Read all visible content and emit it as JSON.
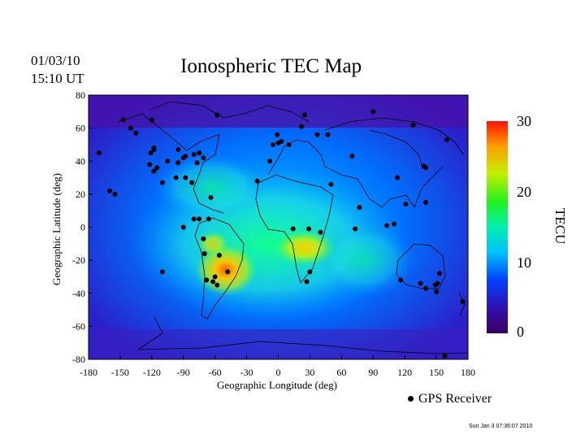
{
  "header": {
    "date": "01/03/10",
    "time": "15:10 UT",
    "title": "Ionospheric TEC Map"
  },
  "map": {
    "xlabel": "Geographic Longitude (deg)",
    "ylabel": "Geographic Latitude (deg)",
    "x_ticks": [
      "-180",
      "-150",
      "-120",
      "-90",
      "-60",
      "-30",
      "0",
      "30",
      "60",
      "90",
      "120",
      "150",
      "180"
    ],
    "y_ticks": [
      "80",
      "60",
      "40",
      "20",
      "0",
      "-20",
      "-40",
      "-60",
      "-80"
    ],
    "xlim": [
      -180,
      180
    ],
    "ylim": [
      -80,
      80
    ]
  },
  "colorbar": {
    "title": "TECU",
    "ticks": [
      "30",
      "20",
      "10",
      "0"
    ],
    "range": [
      0,
      30
    ],
    "colors": [
      "#3a0060",
      "#1a0bd0",
      "#0060ff",
      "#00d0ff",
      "#00ff9a",
      "#20f020",
      "#e0f000",
      "#ffa000",
      "#ff2000"
    ]
  },
  "legend": {
    "marker_label": "GPS Receiver"
  },
  "stamp": "Sun Jan  3 07:36:07 2010",
  "receivers": [
    [
      -147,
      65
    ],
    [
      -118,
      47
    ],
    [
      -122,
      38
    ],
    [
      -118,
      34
    ],
    [
      -115,
      36
    ],
    [
      -105,
      40
    ],
    [
      -95,
      39
    ],
    [
      -90,
      42
    ],
    [
      -88,
      43
    ],
    [
      -80,
      44
    ],
    [
      -75,
      45
    ],
    [
      -71,
      42
    ],
    [
      -77,
      39
    ],
    [
      -97,
      30
    ],
    [
      -88,
      30
    ],
    [
      -82,
      27
    ],
    [
      -110,
      27
    ],
    [
      -64,
      18
    ],
    [
      -118,
      48
    ],
    [
      -121,
      45
    ],
    [
      -95,
      47
    ],
    [
      -58,
      68
    ],
    [
      -155,
      20
    ],
    [
      -160,
      22
    ],
    [
      -80,
      5
    ],
    [
      -75,
      5
    ],
    [
      -66,
      5
    ],
    [
      -90,
      0
    ],
    [
      -71,
      -7
    ],
    [
      -70,
      -16
    ],
    [
      -56,
      -17
    ],
    [
      -68,
      -32
    ],
    [
      -60,
      -30
    ],
    [
      -62,
      -33
    ],
    [
      -58,
      -35
    ],
    [
      -48,
      -27
    ],
    [
      -110,
      -27
    ],
    [
      -20,
      28
    ],
    [
      -8,
      40
    ],
    [
      0,
      51
    ],
    [
      -5,
      50
    ],
    [
      3,
      52
    ],
    [
      10,
      50
    ],
    [
      -1,
      56
    ],
    [
      25,
      68
    ],
    [
      22,
      61
    ],
    [
      37,
      56
    ],
    [
      47,
      56
    ],
    [
      70,
      43
    ],
    [
      77,
      12
    ],
    [
      73,
      -1
    ],
    [
      40,
      -3
    ],
    [
      29,
      -1
    ],
    [
      14,
      -1
    ],
    [
      30,
      -27
    ],
    [
      27,
      -33
    ],
    [
      50,
      26
    ],
    [
      103,
      1
    ],
    [
      110,
      2
    ],
    [
      116,
      -32
    ],
    [
      135,
      -34
    ],
    [
      140,
      -37
    ],
    [
      149,
      -35
    ],
    [
      151,
      -34
    ],
    [
      153,
      -28
    ],
    [
      150,
      -39
    ],
    [
      175,
      -45
    ],
    [
      140,
      36
    ],
    [
      138,
      37
    ],
    [
      128,
      62
    ],
    [
      140,
      15
    ],
    [
      160,
      53
    ],
    [
      90,
      70
    ],
    [
      113,
      30
    ],
    [
      121,
      14
    ],
    [
      158,
      -78
    ],
    [
      -170,
      45
    ],
    [
      -135,
      57
    ],
    [
      -120,
      65
    ],
    [
      -140,
      60
    ]
  ]
}
